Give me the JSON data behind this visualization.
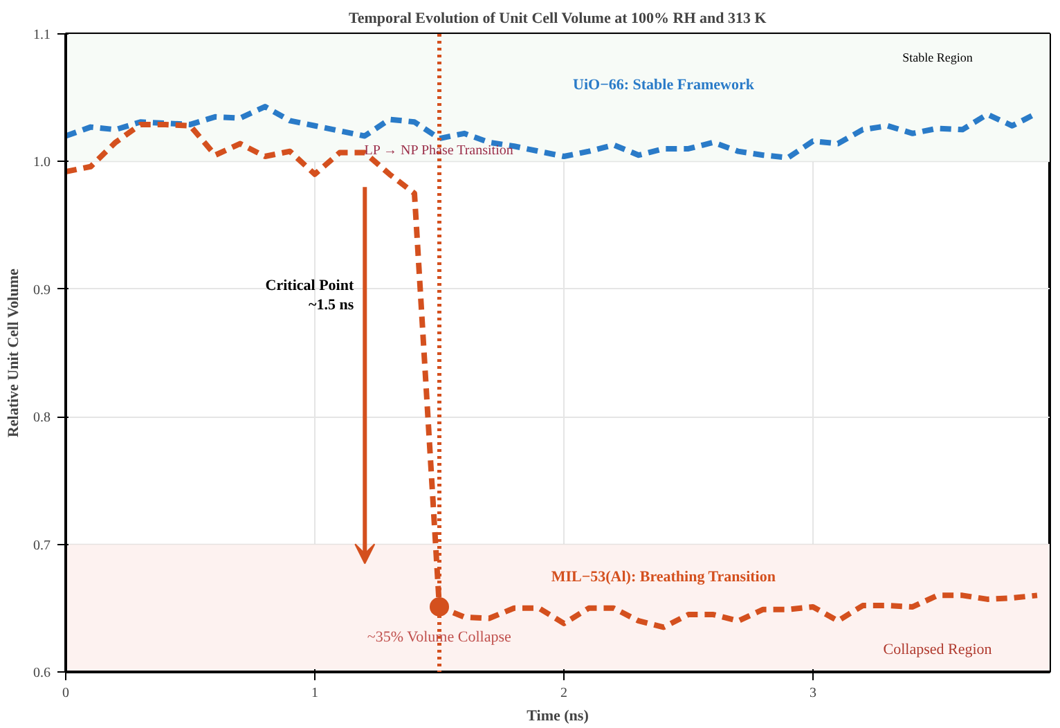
{
  "chart_data": {
    "type": "line",
    "title": "Temporal Evolution of Unit Cell Volume at 100% RH and 313 K",
    "xlabel": "Time (ns)",
    "ylabel": "Relative Unit Cell Volume",
    "x": [
      0,
      0.1,
      0.2,
      0.3,
      0.4,
      0.5,
      0.6,
      0.7,
      0.8,
      0.9,
      1.0,
      1.1,
      1.2,
      1.3,
      1.4,
      1.5,
      1.6,
      1.7,
      1.8,
      1.9,
      2.0,
      2.1,
      2.2,
      2.3,
      2.4,
      2.5,
      2.6,
      2.7,
      2.8,
      2.9,
      3.0,
      3.1,
      3.2,
      3.3,
      3.4,
      3.5,
      3.6,
      3.7,
      3.8,
      3.9
    ],
    "series": [
      {
        "name": "UiO−66: Stable Framework",
        "color": "#2a7bc8",
        "values": [
          1.02,
          1.027,
          1.025,
          1.031,
          1.03,
          1.029,
          1.035,
          1.034,
          1.043,
          1.032,
          1.028,
          1.024,
          1.02,
          1.033,
          1.031,
          1.018,
          1.022,
          1.015,
          1.012,
          1.008,
          1.004,
          1.008,
          1.013,
          1.005,
          1.01,
          1.01,
          1.015,
          1.008,
          1.005,
          1.003,
          1.016,
          1.014,
          1.025,
          1.028,
          1.022,
          1.026,
          1.025,
          1.037,
          1.028,
          1.038
        ]
      },
      {
        "name": "MIL−53(Al): Breathing Transition",
        "color": "#d4501e",
        "values": [
          0.992,
          0.996,
          1.015,
          1.029,
          1.029,
          1.028,
          1.005,
          1.014,
          1.004,
          1.008,
          0.99,
          1.007,
          1.007,
          0.99,
          0.975,
          0.651,
          0.643,
          0.642,
          0.65,
          0.65,
          0.638,
          0.65,
          0.65,
          0.64,
          0.635,
          0.645,
          0.645,
          0.64,
          0.649,
          0.649,
          0.651,
          0.64,
          0.652,
          0.652,
          0.651,
          0.66,
          0.66,
          0.657,
          0.658,
          0.66
        ]
      }
    ],
    "line_style": "dashed",
    "marker": "none",
    "grid": true,
    "xlim": [
      0,
      3.95
    ],
    "ylim": [
      0.6,
      1.1
    ],
    "xticks": [
      0,
      1,
      2,
      3
    ],
    "yticks": [
      0.6,
      0.7,
      0.8,
      0.9,
      {
        "value": 1.0,
        "label": "1.0"
      },
      1.1
    ],
    "ref_lines": [
      {
        "axis": "x",
        "value": 1.5,
        "label": "LP → NP Phase Transition",
        "color": "#d4501e",
        "line_style": "dotted"
      }
    ],
    "bands": [
      {
        "axis": "y",
        "from": 1.0,
        "to": 1.1,
        "label": "Stable Region",
        "color": "#f7fbf7"
      },
      {
        "axis": "y",
        "from": 0.6,
        "to": 0.7,
        "label": "Collapsed Region",
        "color": "#fdf2f0"
      }
    ],
    "annotations": [
      "Critical Point\n~1.5 ns",
      {
        "text": "~35% Volume Collapse",
        "x": 1.5,
        "y": 0.651
      }
    ]
  }
}
